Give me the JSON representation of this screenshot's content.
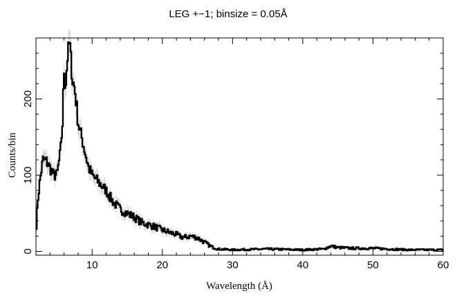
{
  "chart_data": {
    "type": "line",
    "title": "LEG +−1; binsize = 0.05Å",
    "xlabel": "Wavelength (Å)",
    "ylabel": "Counts/bin",
    "xlim": [
      2,
      60
    ],
    "ylim": [
      -5,
      280
    ],
    "xticks_major": [
      10,
      20,
      30,
      40,
      50,
      60
    ],
    "xtick_labels": [
      "10",
      "20",
      "30",
      "40",
      "50",
      "60"
    ],
    "yticks_major": [
      0,
      100,
      200
    ],
    "ytick_labels": [
      "0",
      "100",
      "200"
    ],
    "grid": false,
    "legend": "none",
    "series": [
      {
        "style": "histogram step with error bars",
        "color": "#000000",
        "error_color": "#b8b8b8",
        "x": [
          2,
          2.3,
          2.6,
          3,
          3.5,
          4,
          4.5,
          5,
          5.5,
          5.8,
          6,
          6.2,
          6.5,
          6.8,
          7,
          7.2,
          7.5,
          7.8,
          8,
          8.5,
          9,
          9.5,
          10,
          10.5,
          11,
          11.5,
          12,
          12.5,
          13,
          13.5,
          14,
          15,
          16,
          17,
          18,
          19,
          20,
          21,
          22,
          23,
          24,
          25,
          26,
          27,
          28,
          30,
          35,
          40,
          43,
          44,
          45,
          47,
          50,
          55,
          60
        ],
        "values": [
          25,
          70,
          95,
          120,
          118,
          110,
          100,
          100,
          130,
          170,
          240,
          215,
          255,
          275,
          250,
          225,
          215,
          190,
          170,
          150,
          130,
          110,
          100,
          95,
          90,
          85,
          80,
          72,
          65,
          60,
          55,
          50,
          45,
          38,
          35,
          32,
          28,
          25,
          22,
          18,
          20,
          18,
          12,
          6,
          3,
          2,
          3,
          2,
          3,
          7,
          5,
          4,
          4,
          2,
          2
        ]
      }
    ]
  }
}
